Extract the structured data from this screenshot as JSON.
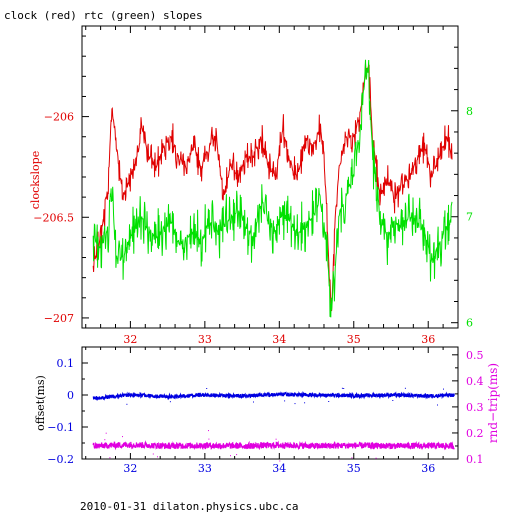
{
  "title": "clock (red) rtc (green) slopes",
  "footer": "2010-01-31  dilaton.physics.ubc.ca",
  "colors": {
    "clock": "#e00000",
    "rtc": "#00e000",
    "offset": "#0000e0",
    "rndtrip": "#e000e0",
    "frame": "#000000"
  },
  "chart_data": [
    {
      "type": "line",
      "title": "clock (red) rtc (green) slopes",
      "xlim": [
        31.35,
        36.4
      ],
      "x_ticks": [
        "32",
        "33",
        "34",
        "35",
        "36"
      ],
      "ylabel": "clockslope",
      "ylim": [
        -207.05,
        -205.55
      ],
      "y_ticks": [
        "-206",
        "-206.5",
        "-207"
      ],
      "y2_ticks": [
        "6",
        "7",
        "8"
      ],
      "y2lim": [
        5.95,
        8.8
      ],
      "series": [
        {
          "name": "clock (red)",
          "axis": "left",
          "points": [
            [
              31.5,
              -206.75
            ],
            [
              31.6,
              -206.6
            ],
            [
              31.7,
              -206.35
            ],
            [
              31.75,
              -205.95
            ],
            [
              31.8,
              -206.1
            ],
            [
              31.9,
              -206.4
            ],
            [
              32.0,
              -206.3
            ],
            [
              32.1,
              -206.2
            ],
            [
              32.15,
              -206.05
            ],
            [
              32.25,
              -206.2
            ],
            [
              32.35,
              -206.25
            ],
            [
              32.45,
              -206.15
            ],
            [
              32.55,
              -206.1
            ],
            [
              32.65,
              -206.2
            ],
            [
              32.75,
              -206.25
            ],
            [
              32.85,
              -206.15
            ],
            [
              32.95,
              -206.25
            ],
            [
              33.05,
              -206.15
            ],
            [
              33.15,
              -206.1
            ],
            [
              33.25,
              -206.4
            ],
            [
              33.35,
              -206.25
            ],
            [
              33.45,
              -206.3
            ],
            [
              33.55,
              -206.2
            ],
            [
              33.65,
              -206.2
            ],
            [
              33.75,
              -206.1
            ],
            [
              33.85,
              -206.25
            ],
            [
              33.95,
              -206.3
            ],
            [
              34.05,
              -206.05
            ],
            [
              34.15,
              -206.25
            ],
            [
              34.25,
              -206.3
            ],
            [
              34.35,
              -206.1
            ],
            [
              34.45,
              -206.15
            ],
            [
              34.55,
              -206.05
            ],
            [
              34.6,
              -206.2
            ],
            [
              34.65,
              -206.6
            ],
            [
              34.7,
              -207.0
            ],
            [
              34.75,
              -206.5
            ],
            [
              34.8,
              -206.25
            ],
            [
              34.9,
              -206.1
            ],
            [
              35.0,
              -206.1
            ],
            [
              35.1,
              -205.95
            ],
            [
              35.15,
              -205.8
            ],
            [
              35.2,
              -205.75
            ],
            [
              35.25,
              -206.1
            ],
            [
              35.35,
              -206.4
            ],
            [
              35.45,
              -206.3
            ],
            [
              35.55,
              -206.4
            ],
            [
              35.65,
              -206.35
            ],
            [
              35.75,
              -206.3
            ],
            [
              35.85,
              -206.2
            ],
            [
              35.95,
              -206.15
            ],
            [
              36.05,
              -206.3
            ],
            [
              36.15,
              -206.2
            ],
            [
              36.25,
              -206.1
            ],
            [
              36.32,
              -206.2
            ]
          ]
        },
        {
          "name": "rtc (green)",
          "axis": "right",
          "points": [
            [
              31.5,
              6.8
            ],
            [
              31.6,
              6.7
            ],
            [
              31.7,
              6.9
            ],
            [
              31.75,
              7.4
            ],
            [
              31.8,
              6.6
            ],
            [
              31.9,
              6.6
            ],
            [
              32.0,
              6.8
            ],
            [
              32.1,
              6.95
            ],
            [
              32.15,
              7.0
            ],
            [
              32.25,
              6.85
            ],
            [
              32.35,
              6.8
            ],
            [
              32.45,
              6.9
            ],
            [
              32.55,
              6.95
            ],
            [
              32.65,
              6.75
            ],
            [
              32.75,
              6.8
            ],
            [
              32.85,
              6.85
            ],
            [
              32.95,
              6.75
            ],
            [
              33.05,
              6.95
            ],
            [
              33.15,
              6.85
            ],
            [
              33.25,
              6.9
            ],
            [
              33.35,
              7.0
            ],
            [
              33.45,
              7.05
            ],
            [
              33.55,
              6.9
            ],
            [
              33.65,
              6.8
            ],
            [
              33.75,
              7.1
            ],
            [
              33.85,
              6.95
            ],
            [
              33.95,
              6.85
            ],
            [
              34.05,
              7.05
            ],
            [
              34.15,
              6.95
            ],
            [
              34.25,
              6.85
            ],
            [
              34.35,
              6.9
            ],
            [
              34.45,
              7.0
            ],
            [
              34.55,
              7.15
            ],
            [
              34.6,
              6.9
            ],
            [
              34.65,
              6.6
            ],
            [
              34.7,
              6.1
            ],
            [
              34.75,
              6.5
            ],
            [
              34.8,
              7.0
            ],
            [
              34.9,
              7.2
            ],
            [
              35.0,
              7.4
            ],
            [
              35.1,
              7.9
            ],
            [
              35.15,
              8.3
            ],
            [
              35.2,
              8.4
            ],
            [
              35.25,
              7.6
            ],
            [
              35.35,
              7.05
            ],
            [
              35.45,
              6.8
            ],
            [
              35.55,
              6.95
            ],
            [
              35.65,
              6.9
            ],
            [
              35.75,
              7.0
            ],
            [
              35.85,
              6.95
            ],
            [
              35.95,
              6.85
            ],
            [
              36.05,
              6.6
            ],
            [
              36.15,
              6.75
            ],
            [
              36.25,
              6.9
            ],
            [
              36.32,
              7.0
            ]
          ]
        }
      ]
    },
    {
      "type": "scatter",
      "xlim": [
        31.35,
        36.4
      ],
      "x_ticks": [
        "32",
        "33",
        "34",
        "35",
        "36"
      ],
      "ylabel": "offset(ms)",
      "ylim": [
        -0.2,
        0.15
      ],
      "y_ticks": [
        "0.1",
        "0",
        "-0.1",
        "-0.2"
      ],
      "y2label": "rnd-trip(ms)",
      "y2lim": [
        0.1,
        0.53
      ],
      "y2_ticks": [
        "0.5",
        "0.4",
        "0.3",
        "0.2",
        "0.1"
      ],
      "series": [
        {
          "name": "offset(ms)",
          "axis": "left",
          "points": [
            [
              31.5,
              -0.01
            ],
            [
              32.0,
              0.0
            ],
            [
              32.5,
              -0.005
            ],
            [
              33.0,
              0.0
            ],
            [
              33.5,
              -0.003
            ],
            [
              34.0,
              0.002
            ],
            [
              34.5,
              0.0
            ],
            [
              35.0,
              -0.002
            ],
            [
              35.5,
              0.0
            ],
            [
              36.0,
              -0.003
            ],
            [
              36.35,
              0.0
            ]
          ]
        },
        {
          "name": "rnd-trip(ms)",
          "axis": "right",
          "points": [
            [
              31.5,
              0.15
            ],
            [
              32.0,
              0.155
            ],
            [
              32.5,
              0.15
            ],
            [
              33.0,
              0.152
            ],
            [
              33.5,
              0.15
            ],
            [
              34.0,
              0.153
            ],
            [
              34.5,
              0.15
            ],
            [
              35.0,
              0.152
            ],
            [
              35.5,
              0.15
            ],
            [
              36.0,
              0.151
            ],
            [
              36.35,
              0.15
            ]
          ]
        }
      ]
    }
  ]
}
